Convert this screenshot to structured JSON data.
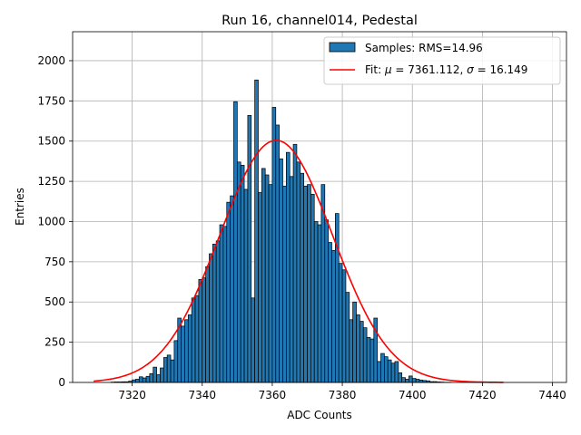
{
  "chart_data": {
    "type": "bar",
    "title": "Run 16, channel014, Pedestal",
    "xlabel": "ADC Counts",
    "ylabel": "Entries",
    "xlim": [
      7303,
      7444
    ],
    "ylim": [
      0,
      2180
    ],
    "xticks": [
      7320,
      7340,
      7360,
      7380,
      7400,
      7420,
      7440
    ],
    "yticks": [
      0,
      250,
      500,
      750,
      1000,
      1250,
      1500,
      1750,
      2000
    ],
    "grid": true,
    "legend_position": "top-right",
    "bin_start": 7309,
    "bin_width": 1,
    "histogram": {
      "name": "Samples: RMS=14.96",
      "color": "#1f77b4",
      "edge_color": "#000000",
      "counts": [
        0,
        0,
        0,
        0,
        0,
        2,
        3,
        3,
        4,
        4,
        8,
        16,
        20,
        35,
        28,
        38,
        55,
        95,
        48,
        90,
        155,
        170,
        140,
        260,
        400,
        350,
        390,
        420,
        525,
        540,
        640,
        650,
        720,
        800,
        860,
        880,
        980,
        970,
        1120,
        1160,
        1745,
        1370,
        1350,
        1200,
        1660,
        525,
        1880,
        1180,
        1330,
        1290,
        1230,
        1710,
        1600,
        1390,
        1220,
        1430,
        1280,
        1480,
        1370,
        1300,
        1220,
        1230,
        1170,
        1000,
        980,
        1230,
        1010,
        870,
        820,
        1050,
        740,
        700,
        560,
        390,
        500,
        420,
        380,
        340,
        280,
        270,
        400,
        130,
        180,
        160,
        140,
        120,
        130,
        60,
        30,
        20,
        40,
        25,
        20,
        15,
        12,
        10,
        5,
        5,
        3,
        2,
        1,
        1
      ]
    },
    "fit": {
      "name": "Fit: μ = 7361.112, σ = 16.149",
      "label_prefix": "Fit: ",
      "mu_symbol": "μ",
      "mu_text": " = 7361.112, ",
      "sigma_symbol": "σ",
      "sigma_text": " = 16.149",
      "color": "#ff0000",
      "mu": 7361.112,
      "sigma": 16.149,
      "amplitude": 1505,
      "x_range": [
        7309,
        7426
      ]
    },
    "legend": {
      "hist_label": "Samples: RMS=14.96"
    }
  }
}
